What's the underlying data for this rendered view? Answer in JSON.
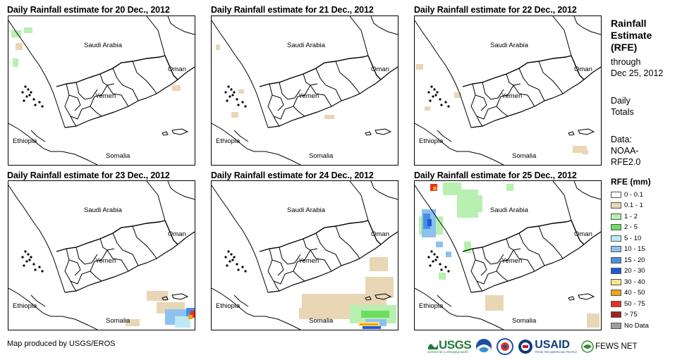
{
  "panels": [
    {
      "title": "Daily Rainfall estimate for 20 Dec., 2012"
    },
    {
      "title": "Daily Rainfall estimate for 21 Dec., 2012"
    },
    {
      "title": "Daily Rainfall estimate for 22 Dec., 2012"
    },
    {
      "title": "Daily Rainfall estimate for 23 Dec., 2012"
    },
    {
      "title": "Daily Rainfall estimate for 24 Dec., 2012"
    },
    {
      "title": "Daily Rainfall estimate for 25 Dec., 2012"
    }
  ],
  "country_labels": {
    "saudi": "Saudi Arabia",
    "oman": "Oman",
    "yemen": "Yemen",
    "ethiopia": "Ethiopia",
    "somalia": "Somalia"
  },
  "legend": {
    "title_line1": "Rainfall",
    "title_line2": "Estimate",
    "title_line3": "(RFE)",
    "through": "through",
    "date": "Dec 25, 2012",
    "daily_line1": "Daily",
    "daily_line2": "Totals",
    "data_line1": "Data:",
    "data_line2": "NOAA-",
    "data_line3": "RFE2.0",
    "heading": "RFE (mm)",
    "classes": [
      {
        "label": "0 - 0.1",
        "color": "#ffffff"
      },
      {
        "label": "0.1 - 1",
        "color": "#e8d6b5"
      },
      {
        "label": "1 - 2",
        "color": "#b7f0b0"
      },
      {
        "label": "2 - 5",
        "color": "#6fdc5e"
      },
      {
        "label": "5 - 10",
        "color": "#bfe8f5"
      },
      {
        "label": "10 - 15",
        "color": "#8cc2ef"
      },
      {
        "label": "15 - 20",
        "color": "#4b8ee0"
      },
      {
        "label": "20 - 30",
        "color": "#1f5ad6"
      },
      {
        "label": "30 - 40",
        "color": "#f6e48a"
      },
      {
        "label": "40 - 50",
        "color": "#f2a21a"
      },
      {
        "label": "50 - 75",
        "color": "#e8321c"
      },
      {
        "label": "> 75",
        "color": "#a3221e"
      },
      {
        "label": "No Data",
        "color": "#9e9e9e"
      }
    ]
  },
  "credit": "Map produced by USGS/EROS",
  "logos": {
    "usgs": "USGS",
    "usgs_tagline": "science for a changing world",
    "usaid": "USAID",
    "usaid_tagline": "FROM THE AMERICAN PEOPLE",
    "fewsnet": "FEWS NET"
  }
}
